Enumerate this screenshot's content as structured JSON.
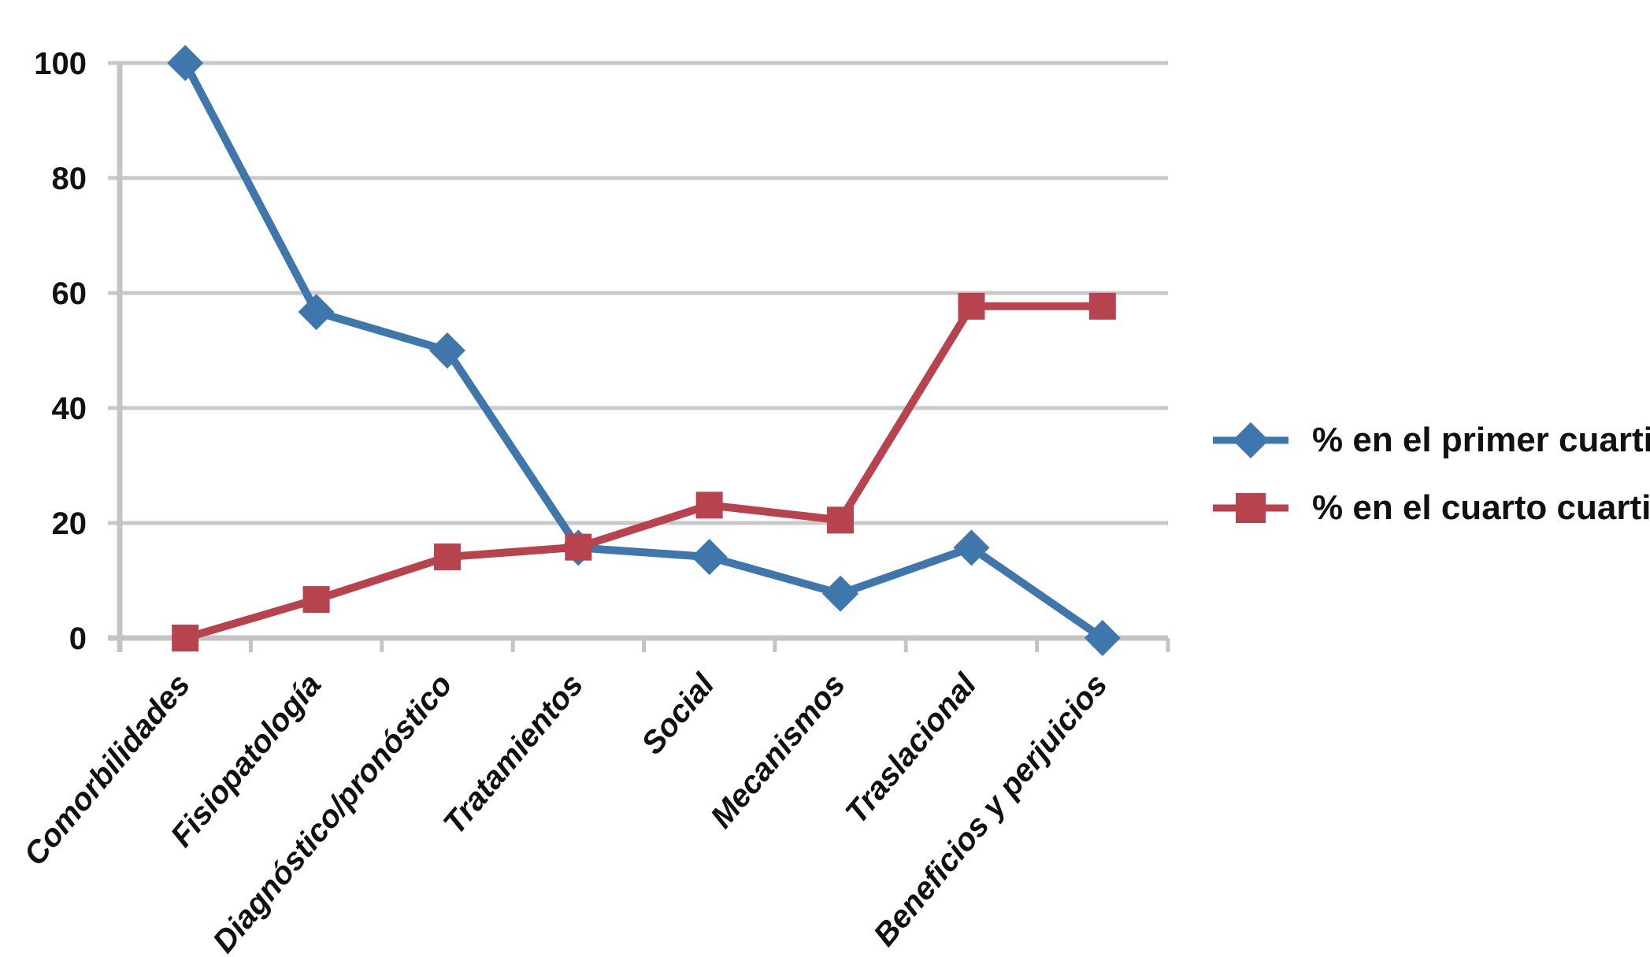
{
  "chart_data": {
    "type": "line",
    "title": "",
    "xlabel": "",
    "ylabel": "",
    "categories": [
      "Comorbilidades",
      "Fisiopatología",
      "Diagnóstico/pronóstico",
      "Tratamientos",
      "Social",
      "Mecanismos",
      "Traslacional",
      "Beneficios y perjuicios"
    ],
    "series": [
      {
        "name": "% en el primer cuartil",
        "marker": "diamond",
        "color": "#3F76AB",
        "values": [
          100,
          56.7,
          50,
          15.7,
          14.1,
          7.7,
          15.7,
          0
        ]
      },
      {
        "name": "% en el cuarto cuartil",
        "marker": "square",
        "color": "#B7434E",
        "values": [
          0,
          6.7,
          14.1,
          15.8,
          23.1,
          20.5,
          57.7,
          57.7
        ]
      }
    ],
    "yticks": [
      0,
      20,
      40,
      60,
      80,
      100
    ],
    "ylim": [
      0,
      100
    ],
    "grid": true,
    "gridline_color": "#C9C9C9",
    "axis_color": "#C4C4C4",
    "legend_position": "right"
  }
}
